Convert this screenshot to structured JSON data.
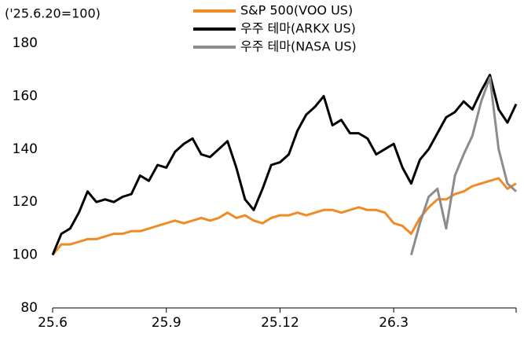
{
  "chart_data": {
    "type": "line",
    "y_label": "('25.6.20=100)",
    "categories": [
      "25.6",
      null,
      null,
      null,
      null,
      null,
      null,
      null,
      null,
      null,
      null,
      null,
      null,
      "25.9",
      null,
      null,
      null,
      null,
      null,
      null,
      null,
      null,
      null,
      null,
      null,
      null,
      "25.12",
      null,
      null,
      null,
      null,
      null,
      null,
      null,
      null,
      null,
      null,
      null,
      null,
      "26.3",
      null,
      null,
      null,
      null,
      null,
      null,
      null,
      null,
      null,
      null,
      null,
      null,
      null,
      null
    ],
    "series": [
      {
        "name": "S&P 500(VOO US)",
        "color": "#f08a24",
        "width": 3,
        "values": [
          100,
          104,
          104,
          105,
          106,
          106,
          107,
          108,
          108,
          109,
          109,
          110,
          111,
          112,
          113,
          112,
          113,
          114,
          113,
          114,
          116,
          114,
          115,
          113,
          112,
          114,
          115,
          115,
          116,
          115,
          116,
          117,
          117,
          116,
          117,
          118,
          117,
          117,
          116,
          112,
          111,
          108,
          114,
          118,
          121,
          121,
          123,
          124,
          126,
          127,
          128,
          129,
          125,
          127
        ]
      },
      {
        "name": "우주 테마(ARKX US)",
        "color": "#000000",
        "width": 3,
        "values": [
          100,
          108,
          110,
          116,
          124,
          120,
          121,
          120,
          122,
          123,
          130,
          128,
          134,
          133,
          139,
          142,
          144,
          138,
          137,
          140,
          143,
          133,
          121,
          117,
          125,
          134,
          135,
          138,
          147,
          153,
          156,
          160,
          149,
          151,
          146,
          146,
          144,
          138,
          140,
          142,
          133,
          127,
          136,
          140,
          146,
          152,
          154,
          158,
          155,
          162,
          168,
          155,
          150,
          157
        ]
      },
      {
        "name": "우주 테마(NASA US)",
        "color": "#8c8c8c",
        "width": 3,
        "values": [
          null,
          null,
          null,
          null,
          null,
          null,
          null,
          null,
          null,
          null,
          null,
          null,
          null,
          null,
          null,
          null,
          null,
          null,
          null,
          null,
          null,
          null,
          null,
          null,
          null,
          null,
          null,
          null,
          null,
          null,
          null,
          null,
          null,
          null,
          null,
          null,
          null,
          null,
          null,
          null,
          null,
          100,
          112,
          122,
          125,
          110,
          130,
          138,
          145,
          158,
          167,
          140,
          127,
          124
        ]
      }
    ],
    "ylim": [
      80,
      180
    ],
    "yticks": [
      80,
      100,
      120,
      140,
      160,
      180
    ],
    "legend": "top"
  }
}
